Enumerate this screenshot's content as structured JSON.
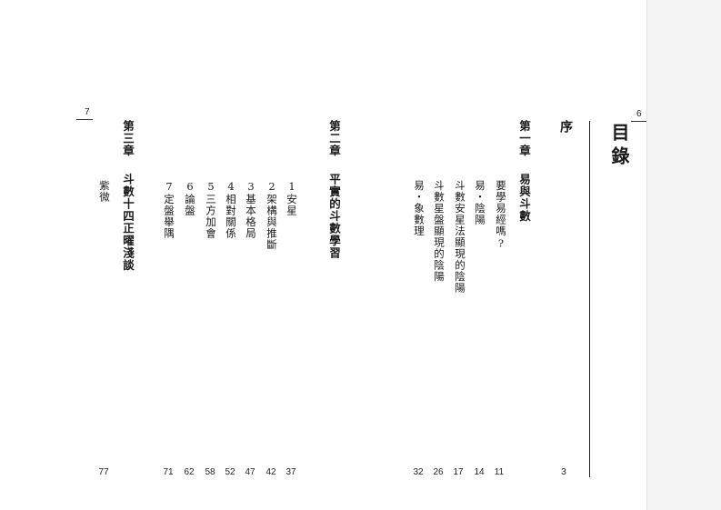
{
  "right_page": {
    "page_number": "6",
    "title": "目錄",
    "preface": {
      "label": "序",
      "page": "3"
    },
    "chapter1": {
      "label": "第一章",
      "title": "易與斗數",
      "items": [
        {
          "label": "要學易經嗎?",
          "page": "11"
        },
        {
          "label": "易・陰陽",
          "page": "14"
        },
        {
          "label": "斗數安星法顯現的陰陽",
          "page": "17"
        },
        {
          "label": "斗數星盤顯現的陰陽",
          "page": "26"
        },
        {
          "label": "易・象數理",
          "page": "32"
        }
      ]
    }
  },
  "left_page": {
    "page_number": "7",
    "chapter2": {
      "label": "第二章",
      "title": "平實的斗數學習",
      "items": [
        {
          "label": "1安星",
          "page": "37"
        },
        {
          "label": "2架構與推斷",
          "page": "42"
        },
        {
          "label": "3基本格局",
          "page": "47"
        },
        {
          "label": "4相對關係",
          "page": "52"
        },
        {
          "label": "5三方加會",
          "page": "58"
        },
        {
          "label": "6論盤",
          "page": "62"
        },
        {
          "label": "7定盤舉隅",
          "page": "71"
        }
      ]
    },
    "chapter3": {
      "label": "第三章",
      "title": "斗數十四正曜淺談",
      "items": [
        {
          "label": "紫微",
          "page": "77"
        }
      ]
    }
  }
}
